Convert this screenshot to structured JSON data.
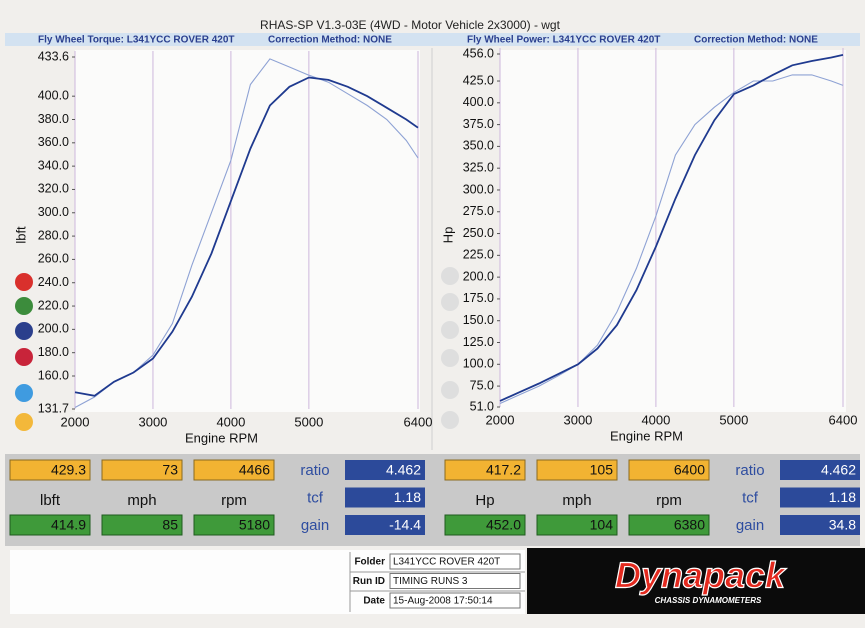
{
  "title": "RHAS-SP V1.3-03E  (4WD - Motor Vehicle 2x3000) - wgt",
  "chart_data": [
    {
      "type": "line",
      "title": "Fly Wheel Torque: L341YCC ROVER 420T",
      "subtitle": "Correction Method: NONE",
      "ylabel": "lbft",
      "xlabel": "Engine RPM",
      "x": [
        2000,
        2250,
        2500,
        2750,
        3000,
        3250,
        3500,
        3750,
        4000,
        4250,
        4500,
        4750,
        5000,
        5250,
        5500,
        5750,
        6000,
        6250,
        6400
      ],
      "xlim": [
        2000,
        6400
      ],
      "xticks": [
        2000,
        3000,
        4000,
        5000,
        6400
      ],
      "ylim": [
        131.7,
        433.6
      ],
      "yticks": [
        131.7,
        {
          "value": 160,
          "label": "160.0"
        },
        {
          "value": 180,
          "label": "180.0"
        },
        {
          "value": 200,
          "label": "200.0"
        },
        {
          "value": 220,
          "label": "220.0"
        },
        {
          "value": 240,
          "label": "240.0"
        },
        {
          "value": 260,
          "label": "260.0"
        },
        {
          "value": 280,
          "label": "280.0"
        },
        {
          "value": 300,
          "label": "300.0"
        },
        {
          "value": 320,
          "label": "320.0"
        },
        {
          "value": 340,
          "label": "340.0"
        },
        {
          "value": 360,
          "label": "360.0"
        },
        {
          "value": 380,
          "label": "380.0"
        },
        {
          "value": 400,
          "label": "400.0"
        },
        433.6
      ],
      "grid": true,
      "series": [
        {
          "color": "#8ea2d4",
          "values": [
            133,
            142,
            155,
            163,
            178,
            205,
            255,
            300,
            345,
            410,
            432,
            425,
            418,
            412,
            402,
            392,
            380,
            362,
            347
          ]
        },
        {
          "color": "#1f3a8f",
          "values": [
            146,
            143,
            155,
            163,
            175,
            198,
            228,
            265,
            310,
            355,
            392,
            408,
            416,
            414,
            408,
            400,
            390,
            380,
            373
          ]
        }
      ]
    },
    {
      "type": "line",
      "title": "Fly Wheel Power: L341YCC ROVER 420T",
      "subtitle": "Correction Method: NONE",
      "ylabel": "Hp",
      "xlabel": "Engine RPM",
      "x": [
        2000,
        2250,
        2500,
        2750,
        3000,
        3250,
        3500,
        3750,
        4000,
        4250,
        4500,
        4750,
        5000,
        5250,
        5500,
        5750,
        6000,
        6250,
        6400
      ],
      "xlim": [
        2000,
        6400
      ],
      "xticks": [
        2000,
        3000,
        4000,
        5000,
        6400
      ],
      "ylim": [
        51.0,
        456.0
      ],
      "yticks": [
        {
          "value": 51,
          "label": "51.0"
        },
        {
          "value": 75,
          "label": "75.0"
        },
        {
          "value": 100,
          "label": "100.0"
        },
        {
          "value": 125,
          "label": "125.0"
        },
        {
          "value": 150,
          "label": "150.0"
        },
        {
          "value": 175,
          "label": "175.0"
        },
        {
          "value": 200,
          "label": "200.0"
        },
        {
          "value": 225,
          "label": "225.0"
        },
        {
          "value": 250,
          "label": "250.0"
        },
        {
          "value": 275,
          "label": "275.0"
        },
        {
          "value": 300,
          "label": "300.0"
        },
        {
          "value": 325,
          "label": "325.0"
        },
        {
          "value": 350,
          "label": "350.0"
        },
        {
          "value": 375,
          "label": "375.0"
        },
        {
          "value": 400,
          "label": "400.0"
        },
        {
          "value": 425,
          "label": "425.0"
        },
        {
          "value": 456,
          "label": "456.0"
        }
      ],
      "grid": true,
      "series": [
        {
          "color": "#8ea2d4",
          "values": [
            55,
            65,
            75,
            87,
            100,
            122,
            160,
            210,
            270,
            340,
            375,
            395,
            412,
            425,
            425,
            432,
            432,
            425,
            420
          ]
        },
        {
          "color": "#1f3a8f",
          "values": [
            58,
            68,
            78,
            89,
            100,
            118,
            145,
            185,
            235,
            290,
            340,
            380,
            410,
            420,
            432,
            443,
            448,
            452,
            455
          ]
        }
      ]
    }
  ],
  "readouts": [
    {
      "top": [
        "429.3",
        "73",
        "4466"
      ],
      "units": [
        "lbft",
        "mph",
        "rpm"
      ],
      "bottom": [
        "414.9",
        "85",
        "5180"
      ],
      "factors": [
        {
          "label": "ratio",
          "value": "4.462"
        },
        {
          "label": "tcf",
          "value": "1.18"
        },
        {
          "label": "gain",
          "value": "-14.4"
        }
      ]
    },
    {
      "top": [
        "417.2",
        "105",
        "6400"
      ],
      "units": [
        "Hp",
        "mph",
        "rpm"
      ],
      "bottom": [
        "452.0",
        "104",
        "6380"
      ],
      "factors": [
        {
          "label": "ratio",
          "value": "4.462"
        },
        {
          "label": "tcf",
          "value": "1.18"
        },
        {
          "label": "gain",
          "value": "34.8"
        }
      ]
    }
  ],
  "footer": {
    "rows": [
      {
        "label": "Folder",
        "value": "L341YCC ROVER 420T"
      },
      {
        "label": "Run ID",
        "value": "TIMING RUNS 3"
      },
      {
        "label": "Date",
        "value": "15-Aug-2008  17:50:14"
      }
    ],
    "logo": "Dynapack",
    "logo_sub": "CHASSIS DYNAMOMETERS"
  }
}
